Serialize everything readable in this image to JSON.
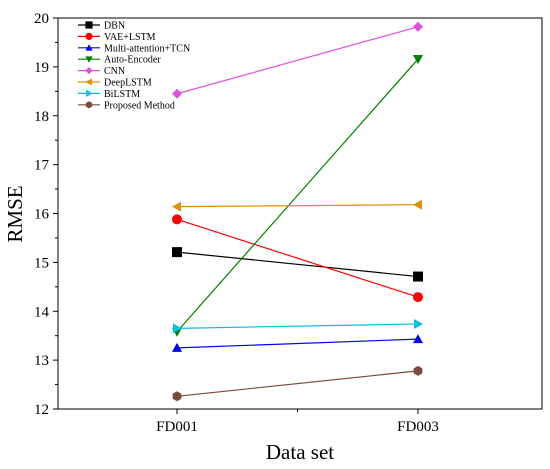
{
  "chart_data": {
    "type": "line",
    "xlabel": "Data set",
    "ylabel": "RMSE",
    "categories": [
      "FD001",
      "FD003"
    ],
    "ylim": [
      12,
      20
    ],
    "yticks": [
      "12",
      "13",
      "14",
      "15",
      "16",
      "17",
      "18",
      "19",
      "20"
    ],
    "grid": false,
    "legend_position": "top-left",
    "series": [
      {
        "name": "DBN",
        "values": [
          15.21,
          14.71
        ],
        "color": "#000000",
        "marker": "square"
      },
      {
        "name": "VAE+LSTM",
        "values": [
          15.88,
          14.29
        ],
        "color": "#ff0000",
        "marker": "circle"
      },
      {
        "name": "Multi-attention+TCN",
        "values": [
          13.25,
          13.43
        ],
        "color": "#0000ff",
        "marker": "triangle-up"
      },
      {
        "name": "Auto-Encoder",
        "values": [
          13.58,
          19.16
        ],
        "color": "#008000",
        "marker": "triangle-down"
      },
      {
        "name": "CNN",
        "values": [
          18.45,
          19.82
        ],
        "color": "#e050e0",
        "marker": "diamond"
      },
      {
        "name": "DeepLSTM",
        "values": [
          16.14,
          16.18
        ],
        "color": "#e09000",
        "marker": "triangle-left"
      },
      {
        "name": "BiLSTM",
        "values": [
          13.65,
          13.74
        ],
        "color": "#00c0e0",
        "marker": "triangle-right"
      },
      {
        "name": "Proposed Method",
        "values": [
          12.26,
          12.78
        ],
        "color": "#7a4a3a",
        "marker": "hexagon"
      }
    ]
  }
}
